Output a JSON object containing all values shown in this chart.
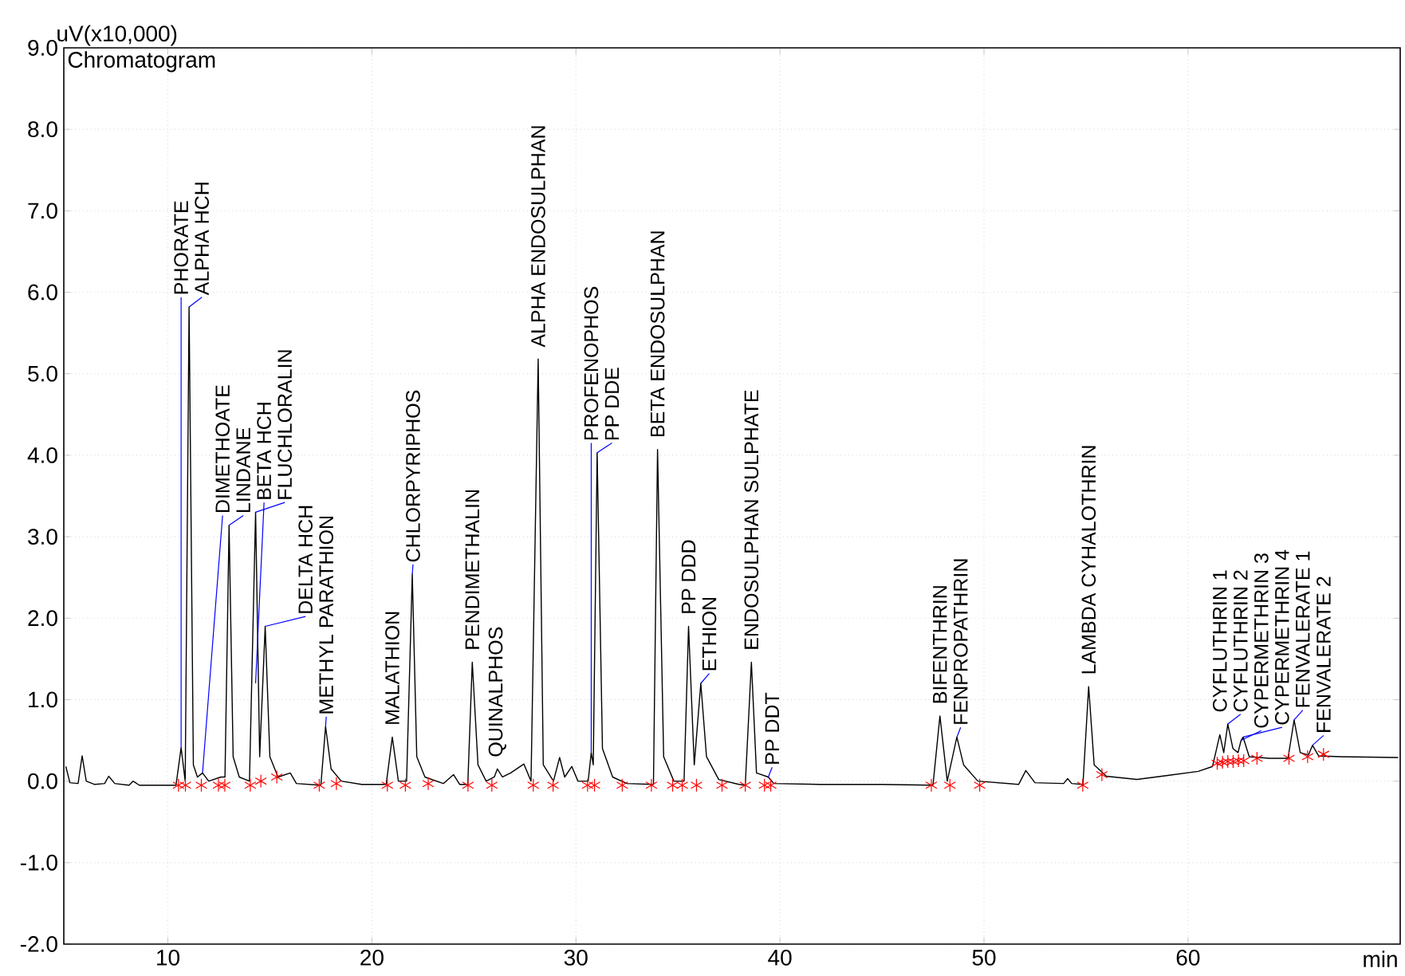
{
  "chart_data": {
    "type": "line",
    "title": "Chromatogram",
    "xlabel": "min",
    "ylabel": "uV(x10,000)",
    "xlim": [
      4.9,
      70.4
    ],
    "ylim": [
      -2,
      9
    ],
    "xticks": [
      10,
      20,
      30,
      40,
      50,
      60
    ],
    "yticks": [
      {
        "value": -2,
        "label": "-2.0"
      },
      {
        "value": -1,
        "label": "-1.0"
      },
      {
        "value": 0,
        "label": "0.0"
      },
      {
        "value": 1,
        "label": "1.0"
      },
      {
        "value": 2,
        "label": "2.0"
      },
      {
        "value": 3,
        "label": "3.0"
      },
      {
        "value": 4,
        "label": "4.0"
      },
      {
        "value": 5,
        "label": "5.0"
      },
      {
        "value": 6,
        "label": "6.0"
      },
      {
        "value": 7,
        "label": "7.0"
      },
      {
        "value": 8,
        "label": "8.0"
      },
      {
        "value": 9,
        "label": "9.0"
      }
    ],
    "grid": true,
    "series": [
      {
        "color": "#000000",
        "x": [
          5.0,
          5.2,
          5.6,
          5.8,
          6.0,
          6.4,
          6.9,
          7.1,
          7.4,
          8.1,
          8.3,
          8.6,
          10.4,
          10.65,
          10.85,
          11.04,
          11.25,
          11.45,
          11.7,
          12.0,
          12.6,
          12.8,
          13.0,
          13.2,
          13.5,
          14.0,
          14.3,
          14.5,
          14.77,
          15.0,
          15.4,
          16.0,
          16.3,
          17.5,
          17.73,
          18.0,
          18.5,
          19.5,
          20.7,
          21.0,
          21.3,
          21.7,
          21.98,
          22.2,
          22.6,
          23.5,
          24.0,
          24.3,
          24.7,
          24.92,
          25.2,
          25.6,
          26.0,
          26.15,
          26.4,
          26.8,
          27.45,
          27.8,
          28.15,
          28.4,
          28.9,
          29.2,
          29.45,
          29.8,
          30.1,
          30.6,
          30.75,
          30.85,
          31.04,
          31.3,
          31.8,
          32.5,
          33.8,
          34.0,
          34.3,
          34.8,
          35.3,
          35.52,
          35.8,
          36.12,
          36.4,
          37.0,
          38.0,
          38.3,
          38.6,
          38.85,
          39.43,
          39.7,
          42.0,
          45.0,
          47.5,
          47.84,
          48.2,
          48.67,
          49.0,
          49.7,
          51.7,
          52.05,
          52.5,
          53.9,
          54.1,
          54.3,
          54.85,
          55.13,
          55.4,
          56.0,
          57.5,
          59.0,
          60.5,
          61.2,
          61.56,
          61.75,
          61.95,
          62.2,
          62.45,
          62.6,
          62.7,
          63.0,
          64.0,
          64.9,
          65.2,
          65.5,
          65.9,
          66.1,
          66.4,
          67.5,
          70.3
        ],
        "values": [
          0.18,
          -0.02,
          -0.03,
          0.31,
          0.0,
          -0.04,
          -0.03,
          0.06,
          -0.03,
          -0.05,
          0.0,
          -0.05,
          -0.05,
          0.41,
          0.0,
          5.82,
          0.2,
          0.05,
          0.1,
          0.0,
          0.05,
          0.05,
          3.14,
          0.3,
          0.05,
          0.0,
          3.3,
          0.3,
          1.9,
          0.3,
          0.05,
          0.1,
          -0.03,
          -0.05,
          0.67,
          0.15,
          0.0,
          -0.04,
          -0.04,
          0.54,
          0.0,
          0.0,
          2.54,
          0.3,
          0.05,
          -0.03,
          0.08,
          -0.04,
          -0.04,
          1.46,
          0.2,
          0.0,
          0.05,
          0.15,
          0.05,
          0.1,
          0.21,
          0.0,
          5.18,
          0.2,
          0.0,
          0.29,
          0.05,
          0.18,
          0.0,
          0.0,
          0.35,
          0.2,
          4.03,
          0.4,
          0.05,
          -0.03,
          -0.04,
          4.07,
          0.3,
          0.0,
          0.0,
          1.9,
          0.2,
          1.2,
          0.3,
          0.02,
          -0.04,
          -0.05,
          1.46,
          0.1,
          0.05,
          -0.03,
          -0.04,
          -0.04,
          -0.05,
          0.8,
          0.0,
          0.54,
          0.2,
          0.0,
          -0.04,
          0.13,
          -0.02,
          -0.03,
          0.03,
          -0.03,
          -0.04,
          1.16,
          0.2,
          0.06,
          0.02,
          0.07,
          0.12,
          0.18,
          0.57,
          0.35,
          0.7,
          0.4,
          0.35,
          0.5,
          0.54,
          0.3,
          0.28,
          0.28,
          0.75,
          0.35,
          0.32,
          0.44,
          0.31,
          0.3,
          0.29
        ]
      },
      {
        "type": "scatter",
        "color": "#ff0000",
        "marker": "cross",
        "x": [
          10.52,
          10.86,
          11.64,
          12.48,
          12.79,
          14.04,
          14.56,
          15.34,
          17.42,
          18.26,
          20.76,
          21.64,
          22.76,
          24.71,
          25.88,
          27.91,
          28.88,
          30.57,
          30.91,
          32.27,
          33.7,
          34.74,
          35.21,
          35.91,
          37.16,
          38.3,
          39.24,
          39.55,
          47.42,
          48.33,
          49.79,
          54.84,
          55.78,
          61.43,
          61.69,
          61.95,
          62.21,
          62.47,
          62.73,
          63.38,
          64.95,
          65.86,
          66.64
        ],
        "values": [
          -0.05,
          -0.05,
          -0.05,
          -0.05,
          -0.05,
          -0.05,
          0.0,
          0.05,
          -0.05,
          -0.03,
          -0.05,
          -0.05,
          -0.03,
          -0.05,
          -0.05,
          -0.05,
          -0.05,
          -0.05,
          -0.05,
          -0.05,
          -0.05,
          -0.05,
          -0.05,
          -0.05,
          -0.05,
          -0.05,
          -0.05,
          -0.05,
          -0.05,
          -0.05,
          -0.05,
          -0.05,
          0.08,
          0.22,
          0.23,
          0.24,
          0.24,
          0.25,
          0.25,
          0.28,
          0.28,
          0.3,
          0.33
        ]
      }
    ],
    "annotations": [
      {
        "text": "PHORATE",
        "x": 10.65,
        "y": 0.41
      },
      {
        "text": "ALPHA HCH",
        "x": 11.04,
        "y": 5.82
      },
      {
        "text": "DIMETHOATE",
        "x": 11.7,
        "y": 0.1
      },
      {
        "text": "LINDANE",
        "x": 13.0,
        "y": 3.14
      },
      {
        "text": "BETA HCH",
        "x": 14.3,
        "y": 1.2
      },
      {
        "text": "FLUCHLORALIN",
        "x": 14.3,
        "y": 3.3
      },
      {
        "text": "DELTA HCH",
        "x": 14.77,
        "y": 1.9
      },
      {
        "text": "METHYL PARATHION",
        "x": 17.73,
        "y": 0.67
      },
      {
        "text": "MALATHION",
        "x": 21.0,
        "y": 0.54
      },
      {
        "text": "CHLORPYRIPHOS",
        "x": 21.98,
        "y": 2.54
      },
      {
        "text": "PENDIMETHALIN",
        "x": 24.92,
        "y": 1.46
      },
      {
        "text": "QUINALPHOS",
        "x": 26.15,
        "y": 0.15
      },
      {
        "text": "ALPHA ENDOSULPHAN",
        "x": 28.15,
        "y": 5.18
      },
      {
        "text": "PROFENOPHOS",
        "x": 30.75,
        "y": 0.35
      },
      {
        "text": "PP DDE",
        "x": 31.04,
        "y": 4.03
      },
      {
        "text": "BETA ENDOSULPHAN",
        "x": 34.0,
        "y": 4.07
      },
      {
        "text": "PP DDD",
        "x": 35.52,
        "y": 1.9
      },
      {
        "text": "ETHION",
        "x": 36.12,
        "y": 1.2
      },
      {
        "text": "ENDOSULPHAN SULPHATE",
        "x": 38.6,
        "y": 1.46
      },
      {
        "text": "PP DDT",
        "x": 39.43,
        "y": 0.05
      },
      {
        "text": "BIFENTHRIN",
        "x": 47.84,
        "y": 0.8
      },
      {
        "text": "FENPROPATHRIN",
        "x": 48.67,
        "y": 0.54
      },
      {
        "text": "LAMBDA CYHALOTHRIN",
        "x": 55.13,
        "y": 1.16
      },
      {
        "text": "CYFLUTHRIN 1",
        "x": 61.56,
        "y": 0.57
      },
      {
        "text": "CYFLUTHRIN 2",
        "x": 61.95,
        "y": 0.7
      },
      {
        "text": "CYPERMETHRIN 3",
        "x": 62.6,
        "y": 0.5
      },
      {
        "text": "CYPERMETHRIN 4",
        "x": 62.7,
        "y": 0.54
      },
      {
        "text": "FENVALERATE 1",
        "x": 65.2,
        "y": 0.75
      },
      {
        "text": "FENVALERATE 2",
        "x": 66.1,
        "y": 0.44
      }
    ]
  }
}
